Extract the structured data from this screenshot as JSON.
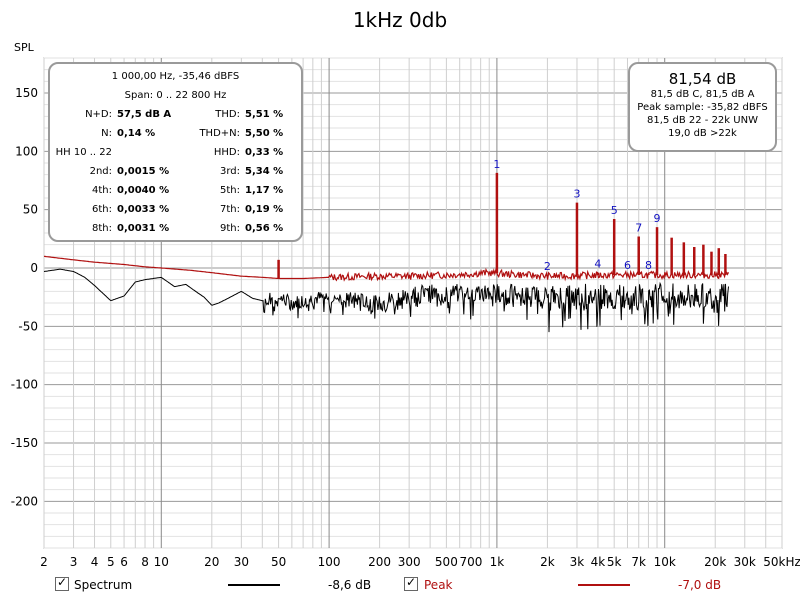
{
  "chart_data": {
    "type": "line",
    "title": "1kHz 0db",
    "ylabel": "SPL",
    "xscale": "log",
    "xlim": [
      2,
      50000
    ],
    "ylim": [
      -240,
      180
    ],
    "grid": true,
    "x_ticks": [
      {
        "v": 2,
        "t": "2"
      },
      {
        "v": 3,
        "t": "3"
      },
      {
        "v": 4,
        "t": "4"
      },
      {
        "v": 5,
        "t": "5"
      },
      {
        "v": 6,
        "t": "6"
      },
      {
        "v": 8,
        "t": "8"
      },
      {
        "v": 10,
        "t": "10"
      },
      {
        "v": 20,
        "t": "20"
      },
      {
        "v": 30,
        "t": "30"
      },
      {
        "v": 50,
        "t": "50"
      },
      {
        "v": 100,
        "t": "100"
      },
      {
        "v": 200,
        "t": "200"
      },
      {
        "v": 300,
        "t": "300"
      },
      {
        "v": 500,
        "t": "500"
      },
      {
        "v": 700,
        "t": "700"
      },
      {
        "v": 1000,
        "t": "1k"
      },
      {
        "v": 2000,
        "t": "2k"
      },
      {
        "v": 3000,
        "t": "3k"
      },
      {
        "v": 4000,
        "t": "4k"
      },
      {
        "v": 5000,
        "t": "5k"
      },
      {
        "v": 7000,
        "t": "7k"
      },
      {
        "v": 10000,
        "t": "10k"
      },
      {
        "v": 20000,
        "t": "20k"
      },
      {
        "v": 30000,
        "t": "30k"
      },
      {
        "v": 50000,
        "t": "50kHz"
      }
    ],
    "y_ticks": [
      150,
      100,
      50,
      0,
      -50,
      -100,
      -150,
      -200
    ],
    "series": [
      {
        "name": "Peak",
        "color": "#b01010",
        "points": [
          [
            2,
            10
          ],
          [
            3,
            7
          ],
          [
            4,
            5
          ],
          [
            6,
            3
          ],
          [
            8,
            1
          ],
          [
            10,
            0
          ],
          [
            15,
            -2
          ],
          [
            20,
            -4
          ],
          [
            30,
            -7
          ],
          [
            40,
            -8
          ],
          [
            50,
            -9
          ],
          [
            70,
            -9
          ],
          [
            100,
            -8
          ],
          [
            200,
            -7
          ],
          [
            300,
            -7
          ],
          [
            500,
            -6
          ],
          [
            700,
            -5
          ],
          [
            900,
            -4
          ],
          [
            1100,
            -5
          ],
          [
            2000,
            -7
          ],
          [
            5000,
            -6
          ],
          [
            10000,
            -6
          ],
          [
            24000,
            -6
          ]
        ],
        "peaks": [
          [
            50,
            7
          ],
          [
            1000,
            81.5
          ],
          [
            2000,
            -6
          ],
          [
            3000,
            56
          ],
          [
            4000,
            -4
          ],
          [
            5000,
            42
          ],
          [
            6000,
            -5
          ],
          [
            7000,
            27
          ],
          [
            8000,
            -5
          ],
          [
            9000,
            35
          ],
          [
            11000,
            26
          ],
          [
            13000,
            22
          ],
          [
            15000,
            18
          ],
          [
            17000,
            20
          ],
          [
            19000,
            14
          ],
          [
            21000,
            17
          ],
          [
            23000,
            12
          ]
        ]
      },
      {
        "name": "Spectrum",
        "color": "#000000",
        "points": [
          [
            2,
            -3
          ],
          [
            2.5,
            -1
          ],
          [
            3,
            -3
          ],
          [
            3.5,
            -8
          ],
          [
            4,
            -15
          ],
          [
            5,
            -28
          ],
          [
            6,
            -24
          ],
          [
            7,
            -12
          ],
          [
            8,
            -10
          ],
          [
            10,
            -8
          ],
          [
            12,
            -16
          ],
          [
            14,
            -14
          ],
          [
            16,
            -20
          ],
          [
            18,
            -25
          ],
          [
            20,
            -32
          ],
          [
            22,
            -30
          ],
          [
            25,
            -26
          ],
          [
            30,
            -20
          ],
          [
            35,
            -26
          ],
          [
            40,
            -28
          ],
          [
            50,
            -25
          ],
          [
            60,
            -30
          ],
          [
            80,
            -26
          ],
          [
            100,
            -25
          ],
          [
            150,
            -27
          ],
          [
            200,
            -30
          ],
          [
            300,
            -22
          ],
          [
            500,
            -22
          ],
          [
            700,
            -21
          ],
          [
            1000,
            -21
          ],
          [
            2000,
            -24
          ],
          [
            5000,
            -24
          ],
          [
            10000,
            -24
          ],
          [
            24000,
            -24
          ]
        ]
      }
    ],
    "harmonic_labels": [
      {
        "t": "1",
        "x": 1000,
        "y": 81.5
      },
      {
        "t": "2",
        "x": 2000,
        "y": -6
      },
      {
        "t": "3",
        "x": 3000,
        "y": 56
      },
      {
        "t": "4",
        "x": 4000,
        "y": -4
      },
      {
        "t": "5",
        "x": 5000,
        "y": 42
      },
      {
        "t": "6",
        "x": 6000,
        "y": -5
      },
      {
        "t": "7",
        "x": 7000,
        "y": 27
      },
      {
        "t": "8",
        "x": 8000,
        "y": -5
      },
      {
        "t": "9",
        "x": 9000,
        "y": 35
      }
    ]
  },
  "stats": {
    "header1": "1 000,00 Hz, -35,46 dBFS",
    "header2": "Span: 0 .. 22 800 Hz",
    "rows": [
      {
        "l1": "N+D:",
        "v1": "57,5 dB A",
        "l2": "THD:",
        "v2": "5,51 %"
      },
      {
        "l1": "N:",
        "v1": "0,14 %",
        "l2": "THD+N:",
        "v2": "5,50 %"
      },
      {
        "l1": "HH 10 .. 22",
        "v1": "",
        "l2": "HHD:",
        "v2": "0,33 %"
      },
      {
        "l1": "2nd:",
        "v1": "0,0015 %",
        "l2": "3rd:",
        "v2": "5,34 %"
      },
      {
        "l1": "4th:",
        "v1": "0,0040 %",
        "l2": "5th:",
        "v2": "1,17 %"
      },
      {
        "l1": "6th:",
        "v1": "0,0033 %",
        "l2": "7th:",
        "v2": "0,19 %"
      },
      {
        "l1": "8th:",
        "v1": "0,0031 %",
        "l2": "9th:",
        "v2": "0,56 %"
      }
    ]
  },
  "level": {
    "main": "81,54 dB",
    "line1": "81,5 dB C, 81,5 dB A",
    "line2": "Peak sample: -35,82 dBFS",
    "line3": "81,5 dB 22 - 22k UNW",
    "line4": "19,0 dB >22k"
  },
  "legend": {
    "spectrum_label": "Spectrum",
    "spectrum_value": "-8,6 dB",
    "spectrum_color": "#000000",
    "peak_label": "Peak",
    "peak_value": "-7,0 dB",
    "peak_color": "#b01010",
    "check": "✓"
  }
}
